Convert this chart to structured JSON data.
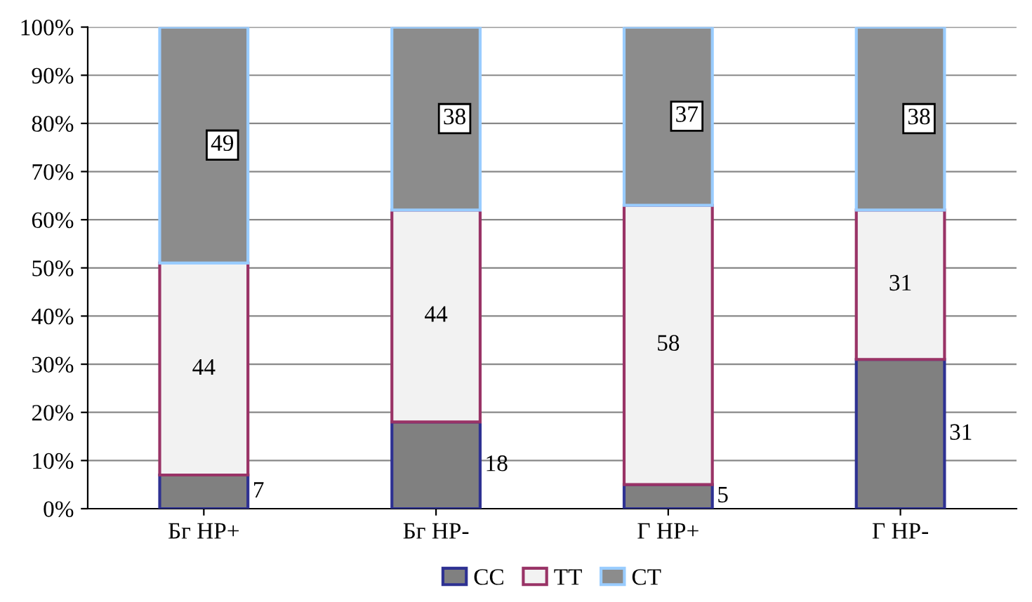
{
  "chart_data": {
    "type": "bar",
    "stacked": true,
    "categories": [
      "Бг HP+",
      "Бг HP-",
      "Г HP+",
      "Г HP-"
    ],
    "series": [
      {
        "name": "CC",
        "color": "#808080",
        "values": [
          7,
          18,
          5,
          31
        ]
      },
      {
        "name": "TT",
        "color": "#f2f2f2",
        "values": [
          44,
          44,
          58,
          31
        ]
      },
      {
        "name": "CT",
        "color": "#8c8c8c",
        "values": [
          49,
          38,
          37,
          38
        ]
      }
    ],
    "ylim": [
      0,
      100
    ],
    "yticks": [
      {
        "value": 0,
        "label": "0%"
      },
      {
        "value": 10,
        "label": "10%"
      },
      {
        "value": 20,
        "label": "20%"
      },
      {
        "value": 30,
        "label": "30%"
      },
      {
        "value": 40,
        "label": "40%"
      },
      {
        "value": 50,
        "label": "50%"
      },
      {
        "value": 60,
        "label": "60%"
      },
      {
        "value": 70,
        "label": "70%"
      },
      {
        "value": 80,
        "label": "80%"
      },
      {
        "value": 90,
        "label": "90%"
      },
      {
        "value": 100,
        "label": "100%"
      }
    ],
    "grid": "y",
    "legend": "bottom",
    "data_labels": true
  }
}
